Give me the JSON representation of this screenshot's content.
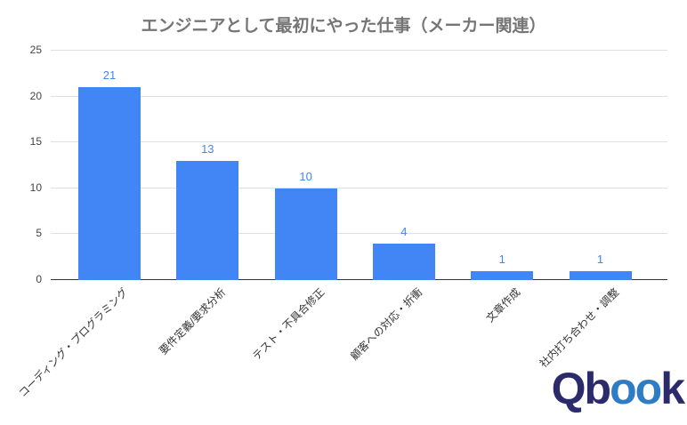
{
  "chart_data": {
    "type": "bar",
    "title": "エンジニアとして最初にやった仕事（メーカー関連）",
    "categories": [
      "コーディング・プログラミング",
      "要件定義/要求分析",
      "テスト・不具合修正",
      "顧客への対応・折衝",
      "文章作成",
      "社内打ち合わせ・調整"
    ],
    "values": [
      21,
      13,
      10,
      4,
      1,
      1
    ],
    "xlabel": "",
    "ylabel": "",
    "ylim": [
      0,
      25
    ],
    "yticks": [
      0,
      5,
      10,
      15,
      20,
      25
    ],
    "grid": true,
    "legend": "none",
    "bar_color": "#4285f4",
    "value_label_color": "#4285f4",
    "title_color": "#757575",
    "axis_text_color": "#444444",
    "gridline_color": "#e0e0e0",
    "baseline_color": "#333333"
  },
  "logo": {
    "name": "Qbook",
    "segments": [
      {
        "text": "Q",
        "color": "#2b2a6b"
      },
      {
        "text": "b",
        "color": "#2b2a6b"
      },
      {
        "text": "oo",
        "color": "#2e7cc3"
      },
      {
        "text": "k",
        "color": "#2b2a6b"
      }
    ]
  }
}
